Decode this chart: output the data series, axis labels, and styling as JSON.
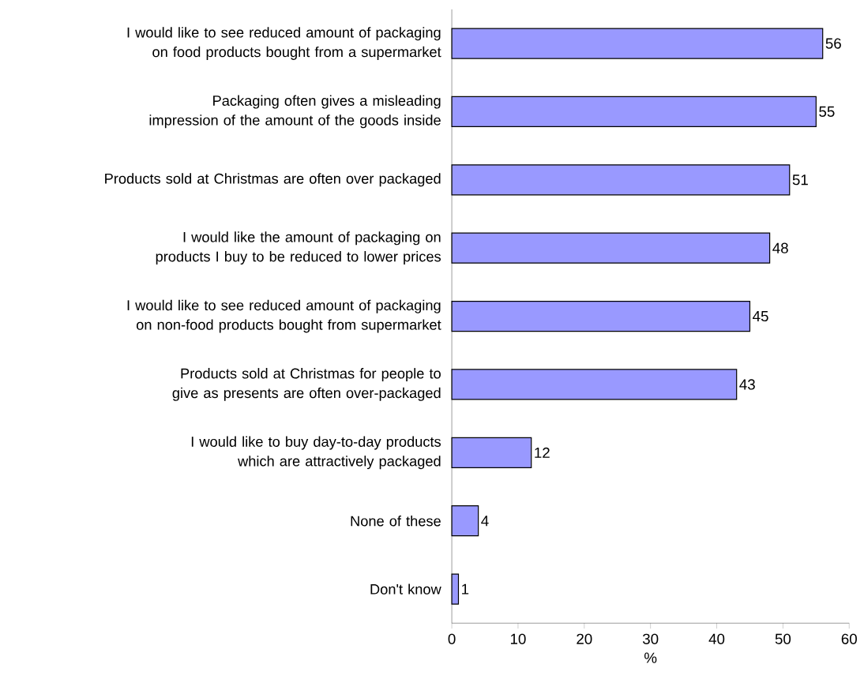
{
  "chart_data": {
    "type": "bar",
    "orientation": "horizontal",
    "categories": [
      "I would like to see reduced amount of packaging on food products bought from a supermarket",
      "Packaging often gives a misleading impression of the amount of the goods inside",
      "Products sold at Christmas are often over packaged",
      "I would like the amount of packaging on products I buy to be reduced to lower prices",
      "I would like to see reduced amount of packaging on non-food products bought from supermarket",
      "Products sold at Christmas for people to give as presents are often over-packaged",
      "I would like to buy day-to-day products which are attractively packaged",
      "None of these",
      "Don't know"
    ],
    "values": [
      56,
      55,
      51,
      48,
      45,
      43,
      12,
      4,
      1
    ],
    "color": "#9999ff",
    "data_labels": true,
    "xlim": [
      0,
      60
    ],
    "xticks": [
      0,
      10,
      20,
      30,
      40,
      50,
      60
    ],
    "xlabel": "%"
  }
}
